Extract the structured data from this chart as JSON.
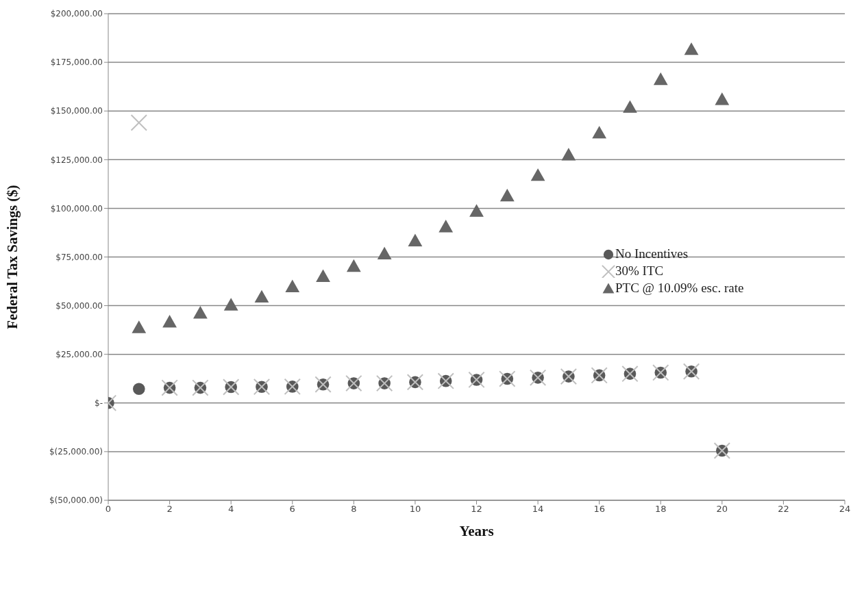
{
  "chart_data": {
    "type": "scatter",
    "xlabel": "Years",
    "ylabel": "Federal Tax Savings ($)",
    "x": [
      0,
      1,
      2,
      3,
      4,
      5,
      6,
      7,
      8,
      9,
      10,
      11,
      12,
      13,
      14,
      15,
      16,
      17,
      18,
      19,
      20
    ],
    "series": [
      {
        "name": "No Incentives",
        "color": "#595959",
        "marker": "circle",
        "values": [
          0,
          7200,
          7800,
          7800,
          8200,
          8300,
          8400,
          9500,
          10100,
          10100,
          10700,
          11300,
          11900,
          12400,
          13000,
          13600,
          14200,
          15000,
          15600,
          16200,
          -24500
        ]
      },
      {
        "name": "30% ITC",
        "color": "#bfbfbf",
        "marker": "cross",
        "values": [
          0,
          144000,
          7800,
          7800,
          8200,
          8300,
          8400,
          9500,
          10100,
          10100,
          10700,
          11300,
          11900,
          12400,
          13000,
          13600,
          14200,
          15000,
          15600,
          16200,
          -24500
        ]
      },
      {
        "name": "PTC @ 10.09% esc. rate",
        "color": "#666666",
        "marker": "triangle",
        "values": [
          null,
          38700,
          41600,
          46200,
          50300,
          54400,
          59700,
          65000,
          70200,
          76600,
          83300,
          90500,
          98500,
          106400,
          116900,
          127400,
          138700,
          151900,
          166200,
          181600,
          155900
        ]
      }
    ],
    "xlim": [
      0,
      24
    ],
    "xticks": [
      0,
      2,
      4,
      6,
      8,
      10,
      12,
      14,
      16,
      18,
      20,
      22,
      24
    ],
    "ylim": [
      -50000,
      200000
    ],
    "yticks": [
      {
        "value": -50000,
        "label": "$(50,000.00)"
      },
      {
        "value": -25000,
        "label": "$(25,000.00)"
      },
      {
        "value": 0,
        "label": "$-"
      },
      {
        "value": 25000,
        "label": "$25,000.00"
      },
      {
        "value": 50000,
        "label": "$50,000.00"
      },
      {
        "value": 75000,
        "label": "$75,000.00"
      },
      {
        "value": 100000,
        "label": "$100,000.00"
      },
      {
        "value": 125000,
        "label": "$125,000.00"
      },
      {
        "value": 150000,
        "label": "$150,000.00"
      },
      {
        "value": 175000,
        "label": "$175,000.00"
      },
      {
        "value": 200000,
        "label": "$200,000.00"
      }
    ],
    "grid": "y",
    "legend": "right"
  }
}
